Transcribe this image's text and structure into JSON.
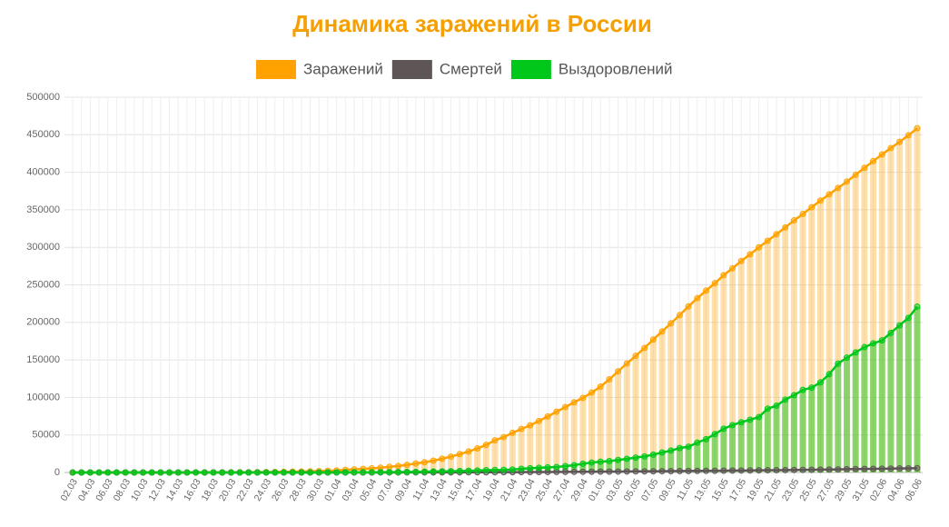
{
  "chart_data": {
    "type": "line",
    "title": "Динамика заражений в России",
    "categories": [
      "02.03",
      null,
      "04.03",
      null,
      "06.03",
      null,
      "08.03",
      null,
      "10.03",
      null,
      "12.03",
      null,
      "14.03",
      null,
      "16.03",
      null,
      "18.03",
      null,
      "20.03",
      null,
      "22.03",
      null,
      "24.03",
      null,
      "26.03",
      null,
      "28.03",
      null,
      "30.03",
      null,
      "01.04",
      null,
      "03.04",
      null,
      "05.04",
      null,
      "07.04",
      null,
      "09.04",
      null,
      "11.04",
      null,
      "13.04",
      null,
      "15.04",
      null,
      "17.04",
      null,
      "19.04",
      null,
      "21.04",
      null,
      "23.04",
      null,
      "25.04",
      null,
      "27.04",
      null,
      "29.04",
      null,
      "01.05",
      null,
      "03.05",
      null,
      "05.05",
      null,
      "07.05",
      null,
      "09.05",
      null,
      "11.05",
      null,
      "13.05",
      null,
      "15.05",
      null,
      "17.05",
      null,
      "19.05",
      null,
      "21.05",
      null,
      "23.05",
      null,
      "25.05",
      null,
      "27.05",
      null,
      "29.05",
      null,
      "31.05",
      null,
      "02.06",
      null,
      "04.06",
      null,
      "06.06"
    ],
    "series": [
      {
        "name": "Заражений",
        "color": "#ffa200",
        "values": [
          3,
          3,
          3,
          4,
          10,
          10,
          17,
          17,
          20,
          20,
          28,
          45,
          59,
          63,
          90,
          114,
          147,
          199,
          253,
          306,
          367,
          438,
          495,
          658,
          840,
          1036,
          1264,
          1534,
          1836,
          2337,
          2777,
          3548,
          4149,
          4731,
          5389,
          6343,
          7497,
          8672,
          10131,
          11917,
          13584,
          15770,
          18328,
          21102,
          24490,
          27938,
          32008,
          36793,
          42853,
          47121,
          52763,
          57999,
          62773,
          68622,
          74588,
          80949,
          87147,
          93558,
          99399,
          106498,
          114431,
          124054,
          134687,
          145268,
          155370,
          165929,
          177160,
          187859,
          198676,
          209688,
          221344,
          232243,
          242271,
          252245,
          262843,
          272043,
          281752,
          290678,
          299941,
          308705,
          317554,
          326448,
          335882,
          344481,
          353427,
          362342,
          370680,
          379051,
          387623,
          396575,
          405843,
          414878,
          423741,
          432277,
          440538,
          449256,
          458689
        ]
      },
      {
        "name": "Смертей",
        "color": "#5e5656",
        "values": [
          0,
          0,
          0,
          0,
          0,
          0,
          0,
          0,
          0,
          0,
          0,
          0,
          0,
          0,
          0,
          0,
          0,
          1,
          1,
          1,
          1,
          1,
          1,
          2,
          3,
          3,
          4,
          8,
          9,
          17,
          24,
          30,
          34,
          43,
          45,
          47,
          58,
          63,
          76,
          94,
          106,
          130,
          148,
          170,
          198,
          232,
          273,
          313,
          361,
          405,
          456,
          513,
          555,
          615,
          681,
          747,
          794,
          867,
          972,
          1073,
          1169,
          1222,
          1280,
          1356,
          1451,
          1537,
          1625,
          1723,
          1827,
          1915,
          2009,
          2116,
          2212,
          2305,
          2418,
          2537,
          2631,
          2722,
          2837,
          2972,
          3099,
          3249,
          3388,
          3541,
          3633,
          3807,
          3968,
          4142,
          4374,
          4555,
          4693,
          4855,
          5037,
          5215,
          5384,
          5520,
          5725
        ]
      },
      {
        "name": "Выздоровлений",
        "color": "#00c81a",
        "values": [
          0,
          0,
          0,
          0,
          0,
          0,
          0,
          0,
          0,
          0,
          0,
          0,
          1,
          1,
          5,
          5,
          5,
          8,
          9,
          12,
          16,
          16,
          22,
          22,
          38,
          49,
          64,
          66,
          66,
          121,
          190,
          235,
          281,
          333,
          355,
          406,
          494,
          580,
          698,
          795,
          1045,
          1291,
          1470,
          1694,
          1986,
          2304,
          2590,
          3057,
          3291,
          3446,
          3873,
          4891,
          5568,
          6250,
          6767,
          7337,
          8456,
          9694,
          11619,
          13220,
          14330,
          15131,
          16639,
          18209,
          19865,
          21327,
          23803,
          26608,
          29145,
          32496,
          34306,
          39801,
          44331,
          51165,
          58226,
          63143,
          66924,
          70290,
          73800,
          85000,
          89000,
          97000,
          103000,
          110000,
          113000,
          120000,
          131000,
          145000,
          153000,
          160000,
          167000,
          172000,
          176000,
          186000,
          196000,
          206000,
          221000
        ]
      }
    ],
    "ylim": [
      0,
      500000
    ],
    "yticks": [
      0,
      50000,
      100000,
      150000,
      200000,
      250000,
      300000,
      350000,
      400000,
      450000,
      500000
    ],
    "grid": true
  }
}
